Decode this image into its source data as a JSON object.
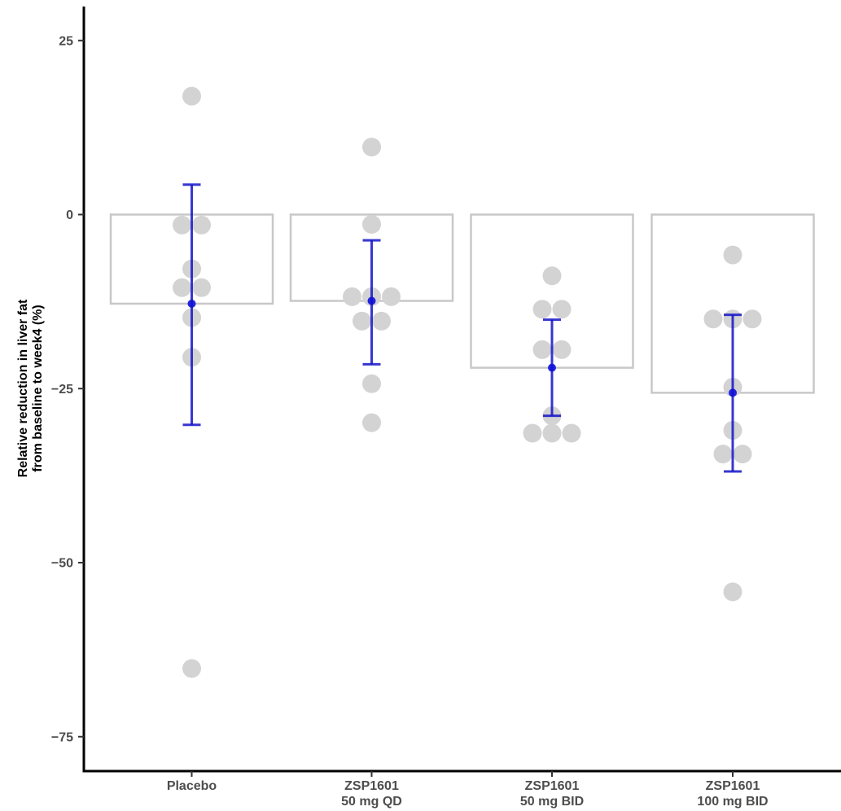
{
  "chart_data": {
    "type": "bar",
    "title": "",
    "xlabel": "",
    "ylabel": [
      "Relative reduction in liver fat",
      "from baseline to week4 (%)"
    ],
    "ylim": [
      -80,
      29
    ],
    "yticks": [
      25,
      0,
      -25,
      -50,
      -75
    ],
    "ytick_labels": [
      "25",
      "0",
      "−25",
      "−50",
      "−75"
    ],
    "grid": false,
    "legend": "none",
    "categories": [
      [
        "Placebo"
      ],
      [
        "ZSP1601",
        "50 mg QD"
      ],
      [
        "ZSP1601",
        "50 mg BID"
      ],
      [
        "ZSP1601",
        "100 mg BID"
      ]
    ],
    "groups": [
      {
        "mean": -12.8,
        "error_low": -30.2,
        "error_high": 4.3,
        "points": [
          17,
          -1.5,
          -1.5,
          -7.8,
          -10.5,
          -10.5,
          -14.8,
          -20.5,
          -65.2
        ],
        "offsets": [
          0,
          -1,
          1,
          0,
          -1,
          1,
          0,
          0,
          0
        ]
      },
      {
        "mean": -12.4,
        "error_low": -21.5,
        "error_high": -3.7,
        "points": [
          9.7,
          -1.4,
          -11.8,
          -11.8,
          -11.8,
          -15.3,
          -15.3,
          -24.3,
          -29.9
        ],
        "offsets": [
          0,
          0,
          -2,
          0,
          2,
          -1,
          1,
          0,
          0
        ]
      },
      {
        "mean": -22,
        "error_low": -28.9,
        "error_high": -15.1,
        "points": [
          -8.8,
          -13.6,
          -13.6,
          -19.4,
          -19.4,
          -28.9,
          -31.4,
          -31.4,
          -31.4
        ],
        "offsets": [
          0,
          -1,
          1,
          -1,
          1,
          0,
          -2,
          0,
          2
        ]
      },
      {
        "mean": -25.6,
        "error_low": -36.9,
        "error_high": -14.4,
        "points": [
          -5.8,
          -15,
          -15,
          -15,
          -24.8,
          -31,
          -34.4,
          -34.4,
          -54.2
        ],
        "offsets": [
          0,
          -2,
          0,
          2,
          0,
          0,
          -1,
          1,
          0
        ]
      }
    ],
    "colors": {
      "bar_stroke": "#c8c8c8",
      "point_fill": "#d3d3d3",
      "error_bar": "#1414c8",
      "mean_point": "#1010d8",
      "axis": "#000000"
    }
  }
}
